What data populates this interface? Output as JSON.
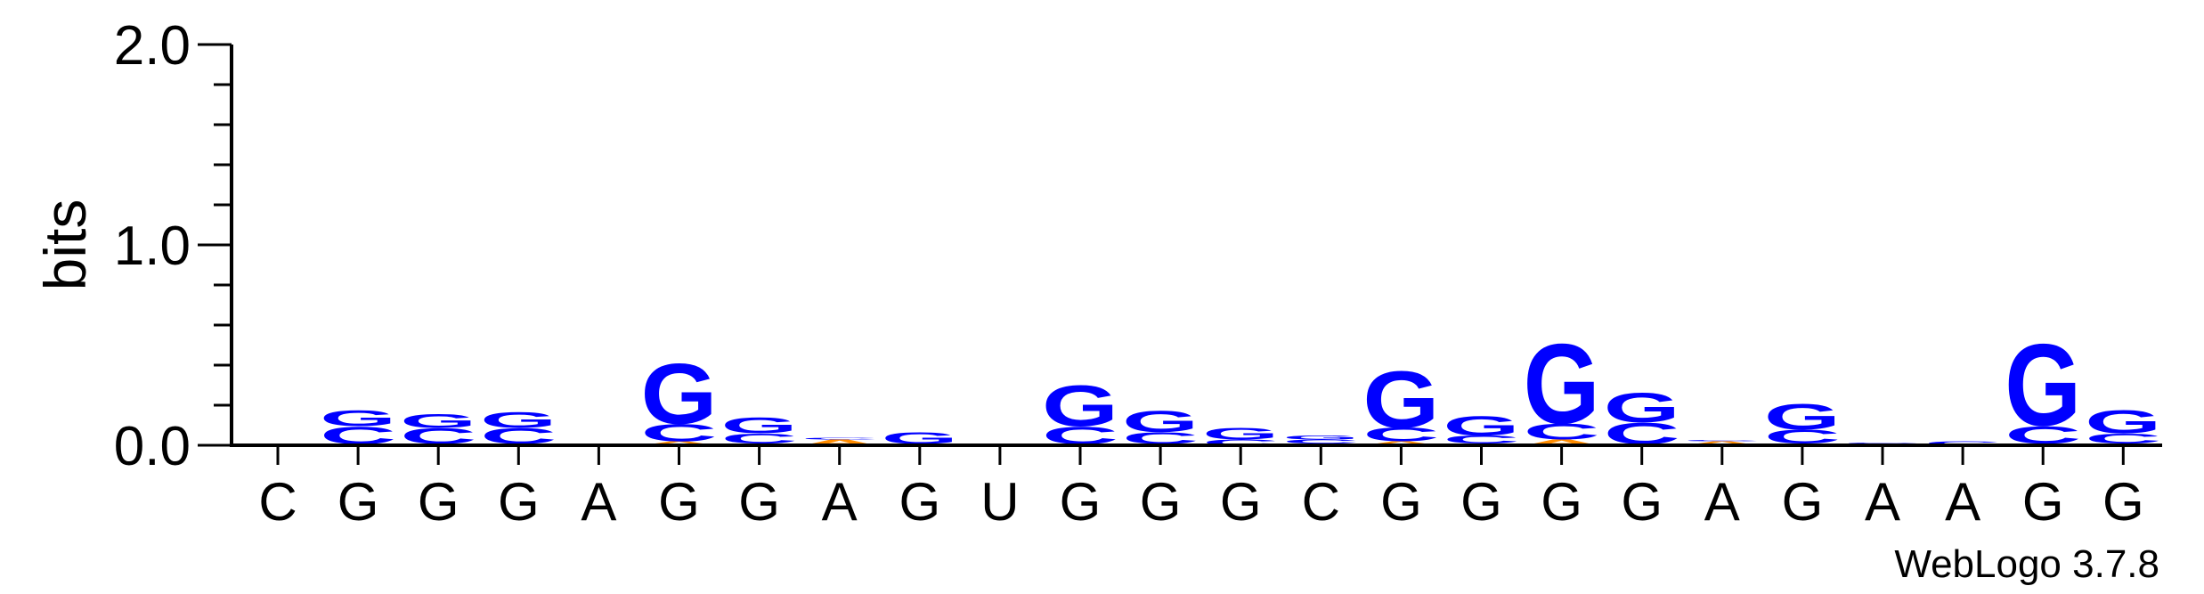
{
  "chart_data": {
    "type": "sequence-logo",
    "ylabel": "bits",
    "ylim": [
      0,
      2.0
    ],
    "y_ticks": [
      {
        "value": 0.0,
        "label": "0.0"
      },
      {
        "value": 1.0,
        "label": "1.0"
      },
      {
        "value": 2.0,
        "label": "2.0"
      }
    ],
    "y_minor_step": 0.2,
    "x_labels": [
      "C",
      "G",
      "G",
      "G",
      "A",
      "G",
      "G",
      "A",
      "G",
      "U",
      "G",
      "G",
      "G",
      "C",
      "G",
      "G",
      "G",
      "G",
      "A",
      "G",
      "A",
      "A",
      "G",
      "G"
    ],
    "colors": {
      "G": "#0000ff",
      "C": "#0000ff",
      "A": "#ff8c00",
      "U": "#ff8c00"
    },
    "positions": [
      {
        "stack": [
          {
            "base": "C",
            "bits": 0.008
          }
        ]
      },
      {
        "stack": [
          {
            "base": "A",
            "bits": 0.006
          },
          {
            "base": "C",
            "bits": 0.09
          },
          {
            "base": "G",
            "bits": 0.08
          }
        ]
      },
      {
        "stack": [
          {
            "base": "A",
            "bits": 0.006
          },
          {
            "base": "C",
            "bits": 0.08
          },
          {
            "base": "G",
            "bits": 0.07
          }
        ]
      },
      {
        "stack": [
          {
            "base": "A",
            "bits": 0.006
          },
          {
            "base": "C",
            "bits": 0.08
          },
          {
            "base": "G",
            "bits": 0.08
          }
        ]
      },
      {
        "stack": [
          {
            "base": "G",
            "bits": 0.01
          }
        ]
      },
      {
        "stack": [
          {
            "base": "A",
            "bits": 0.02
          },
          {
            "base": "C",
            "bits": 0.09
          },
          {
            "base": "G",
            "bits": 0.31
          }
        ]
      },
      {
        "stack": [
          {
            "base": "A",
            "bits": 0.01
          },
          {
            "base": "C",
            "bits": 0.05
          },
          {
            "base": "G",
            "bits": 0.08
          }
        ]
      },
      {
        "stack": [
          {
            "base": "A",
            "bits": 0.03
          },
          {
            "base": "C",
            "bits": 0.01
          }
        ]
      },
      {
        "stack": [
          {
            "base": "A",
            "bits": 0.006
          },
          {
            "base": "G",
            "bits": 0.06
          }
        ]
      },
      {
        "stack": [
          {
            "base": "U",
            "bits": 0.004
          }
        ]
      },
      {
        "stack": [
          {
            "base": "A",
            "bits": 0.006
          },
          {
            "base": "C",
            "bits": 0.09
          },
          {
            "base": "G",
            "bits": 0.21
          }
        ]
      },
      {
        "stack": [
          {
            "base": "A",
            "bits": 0.006
          },
          {
            "base": "C",
            "bits": 0.06
          },
          {
            "base": "G",
            "bits": 0.11
          }
        ]
      },
      {
        "stack": [
          {
            "base": "C",
            "bits": 0.03
          },
          {
            "base": "G",
            "bits": 0.06
          }
        ]
      },
      {
        "stack": [
          {
            "base": "A",
            "bits": 0.01
          },
          {
            "base": "C",
            "bits": 0.02
          },
          {
            "base": "G",
            "bits": 0.02
          }
        ]
      },
      {
        "stack": [
          {
            "base": "A",
            "bits": 0.02
          },
          {
            "base": "C",
            "bits": 0.07
          },
          {
            "base": "G",
            "bits": 0.29
          }
        ]
      },
      {
        "stack": [
          {
            "base": "A",
            "bits": 0.01
          },
          {
            "base": "C",
            "bits": 0.04
          },
          {
            "base": "G",
            "bits": 0.1
          }
        ]
      },
      {
        "stack": [
          {
            "base": "A",
            "bits": 0.03
          },
          {
            "base": "C",
            "bits": 0.08
          },
          {
            "base": "G",
            "bits": 0.41
          }
        ]
      },
      {
        "stack": [
          {
            "base": "A",
            "bits": 0.006
          },
          {
            "base": "C",
            "bits": 0.11
          },
          {
            "base": "G",
            "bits": 0.15
          }
        ]
      },
      {
        "stack": [
          {
            "base": "A",
            "bits": 0.02
          },
          {
            "base": "C",
            "bits": 0.005
          }
        ]
      },
      {
        "stack": [
          {
            "base": "A",
            "bits": 0.01
          },
          {
            "base": "C",
            "bits": 0.07
          },
          {
            "base": "G",
            "bits": 0.13
          }
        ]
      },
      {
        "stack": [
          {
            "base": "A",
            "bits": 0.005
          },
          {
            "base": "C",
            "bits": 0.01
          }
        ]
      },
      {
        "stack": [
          {
            "base": "C",
            "bits": 0.02
          }
        ]
      },
      {
        "stack": [
          {
            "base": "A",
            "bits": 0.01
          },
          {
            "base": "C",
            "bits": 0.09
          },
          {
            "base": "G",
            "bits": 0.42
          }
        ]
      },
      {
        "stack": [
          {
            "base": "A",
            "bits": 0.01
          },
          {
            "base": "C",
            "bits": 0.05
          },
          {
            "base": "G",
            "bits": 0.12
          }
        ]
      }
    ]
  },
  "footer": {
    "credit": "WebLogo 3.7.8"
  }
}
